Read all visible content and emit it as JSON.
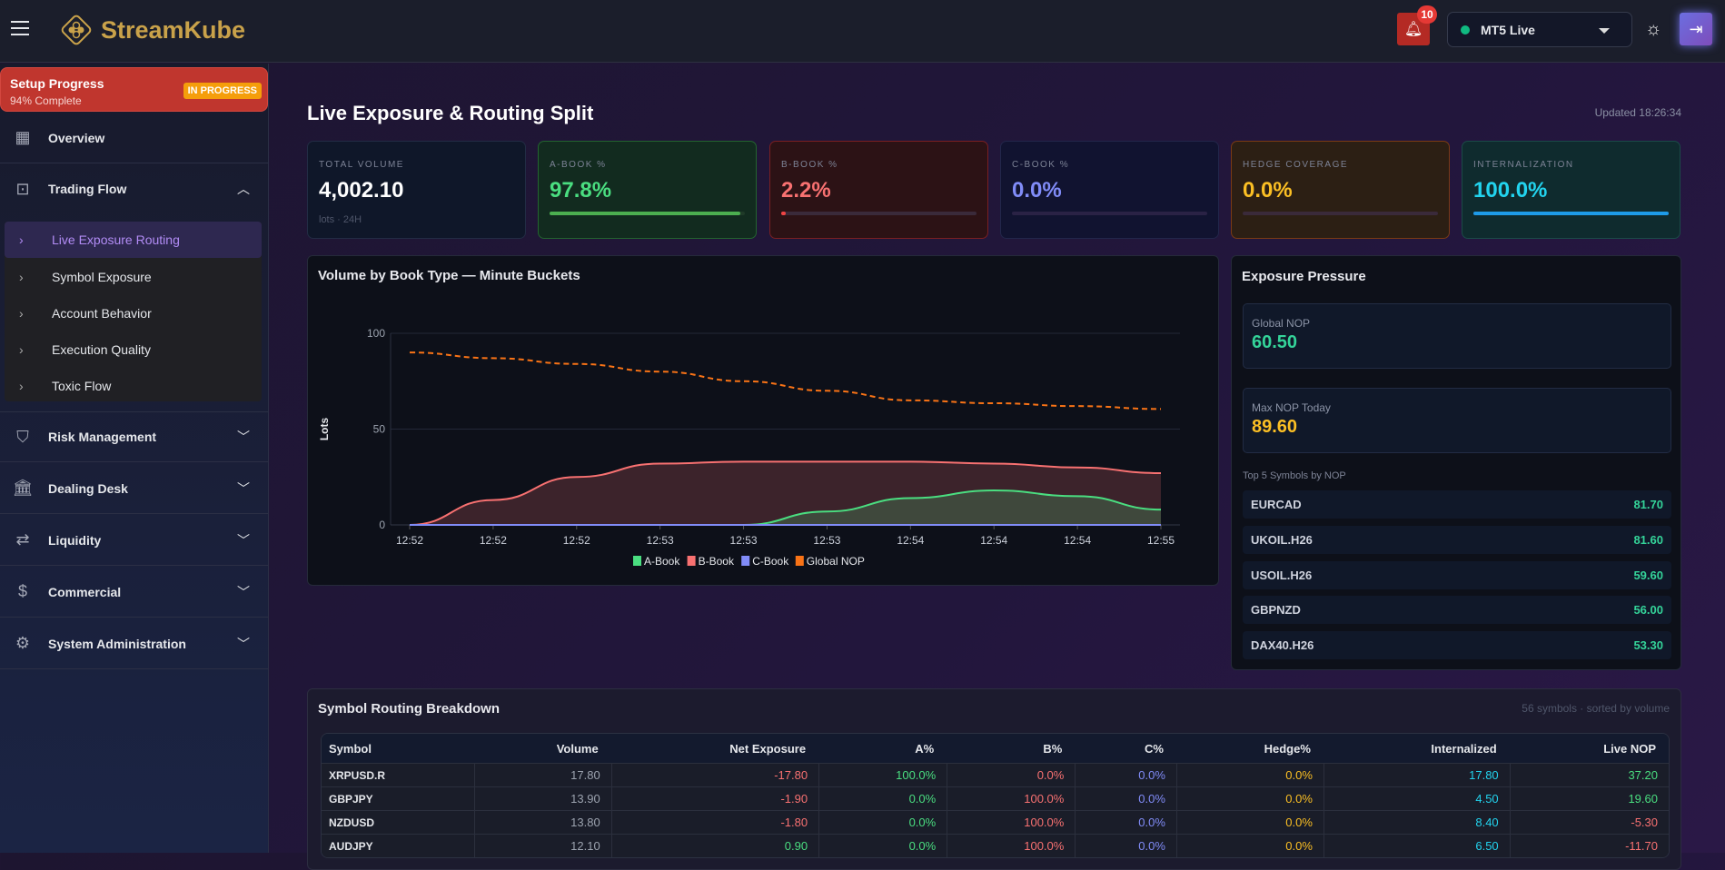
{
  "header": {
    "brand": "StreamKube",
    "notifications": "10",
    "server": "MT5 Live",
    "colors": {
      "brand": "#c9a24a",
      "server_status": "#10b981"
    }
  },
  "sidebar": {
    "setup": {
      "title": "Setup Progress",
      "subtitle": "94% Complete",
      "badge": "IN PROGRESS",
      "percent": 94
    },
    "items": [
      {
        "label": "Overview",
        "icon": "dashboard-icon"
      },
      {
        "label": "Trading Flow",
        "icon": "id-badge-icon",
        "expanded": true
      },
      {
        "label": "Risk Management",
        "icon": "shield-icon"
      },
      {
        "label": "Dealing Desk",
        "icon": "bank-icon"
      },
      {
        "label": "Liquidity",
        "icon": "arrows-exchange-icon"
      },
      {
        "label": "Commercial",
        "icon": "dollar-sync-icon"
      },
      {
        "label": "System Administration",
        "icon": "gear-icon"
      }
    ],
    "sub_items": [
      {
        "label": "Live Exposure Routing",
        "active": true
      },
      {
        "label": "Symbol Exposure"
      },
      {
        "label": "Account Behavior"
      },
      {
        "label": "Execution Quality"
      },
      {
        "label": "Toxic Flow"
      }
    ]
  },
  "page": {
    "title": "Live Exposure & Routing Split",
    "updated": "Updated 18:26:34"
  },
  "kpis": [
    {
      "label": "TOTAL VOLUME",
      "value": "4,002.10",
      "sub": "lots · 24H"
    },
    {
      "label": "A-BOOK %",
      "value": "97.8%",
      "progress": 97.8,
      "color": "#4ade80"
    },
    {
      "label": "B-BOOK %",
      "value": "2.2%",
      "progress": 2.2,
      "color": "#f87171"
    },
    {
      "label": "C-BOOK %",
      "value": "0.0%",
      "progress": 0,
      "color": "#818cf8"
    },
    {
      "label": "HEDGE COVERAGE",
      "value": "0.0%",
      "progress": 0,
      "color": "#fbbf24"
    },
    {
      "label": "INTERNALIZATION",
      "value": "100.0%",
      "progress": 100,
      "color": "#22d3ee"
    }
  ],
  "chart_data": {
    "type": "area",
    "title": "Volume by Book Type — Minute Buckets",
    "ylabel": "Lots",
    "ylim": [
      0,
      100
    ],
    "yticks": [
      "0",
      "50",
      "100"
    ],
    "categories": [
      "12:52",
      "12:52",
      "12:52",
      "12:53",
      "12:53",
      "12:53",
      "12:54",
      "12:54",
      "12:54",
      "12:55"
    ],
    "series": [
      {
        "name": "A-Book",
        "color": "#4ade80",
        "values": [
          0,
          0,
          0,
          0,
          0,
          7,
          14,
          18,
          15,
          8
        ]
      },
      {
        "name": "B-Book",
        "color": "#f87171",
        "values": [
          0,
          13,
          25,
          32,
          33,
          33,
          33,
          32,
          30,
          27
        ]
      },
      {
        "name": "C-Book",
        "color": "#818cf8",
        "values": [
          0,
          0,
          0,
          0,
          0,
          0,
          0,
          0,
          0,
          0
        ]
      },
      {
        "name": "Global NOP",
        "color": "#f97316",
        "dashed": true,
        "values": [
          90,
          87,
          84,
          80,
          75,
          70,
          65,
          63.5,
          62,
          60.5
        ]
      }
    ],
    "grid": true,
    "legend": "bottom"
  },
  "exposure": {
    "title": "Exposure Pressure",
    "global_label": "Global NOP",
    "global_value": "60.50",
    "max_label": "Max NOP Today",
    "max_value": "89.60",
    "top_label": "Top 5 Symbols by NOP",
    "top": [
      {
        "symbol": "EURCAD",
        "value": "81.70"
      },
      {
        "symbol": "UKOIL.H26",
        "value": "81.60"
      },
      {
        "symbol": "USOIL.H26",
        "value": "59.60"
      },
      {
        "symbol": "GBPNZD",
        "value": "56.00"
      },
      {
        "symbol": "DAX40.H26",
        "value": "53.30"
      }
    ]
  },
  "table": {
    "title": "Symbol Routing Breakdown",
    "meta": "56 symbols · sorted by volume",
    "columns": [
      "Symbol",
      "Volume",
      "Net Exposure",
      "A%",
      "B%",
      "C%",
      "Hedge%",
      "Internalized",
      "Live NOP"
    ],
    "rows": [
      [
        "XRPUSD.R",
        "17.80",
        "-17.80",
        "100.0%",
        "0.0%",
        "0.0%",
        "0.0%",
        "17.80",
        "37.20"
      ],
      [
        "GBPJPY",
        "13.90",
        "-1.90",
        "0.0%",
        "100.0%",
        "0.0%",
        "0.0%",
        "4.50",
        "19.60"
      ],
      [
        "NZDUSD",
        "13.80",
        "-1.80",
        "0.0%",
        "100.0%",
        "0.0%",
        "0.0%",
        "8.40",
        "-5.30"
      ],
      [
        "AUDJPY",
        "12.10",
        "0.90",
        "0.0%",
        "100.0%",
        "0.0%",
        "0.0%",
        "6.50",
        "-11.70"
      ]
    ]
  }
}
